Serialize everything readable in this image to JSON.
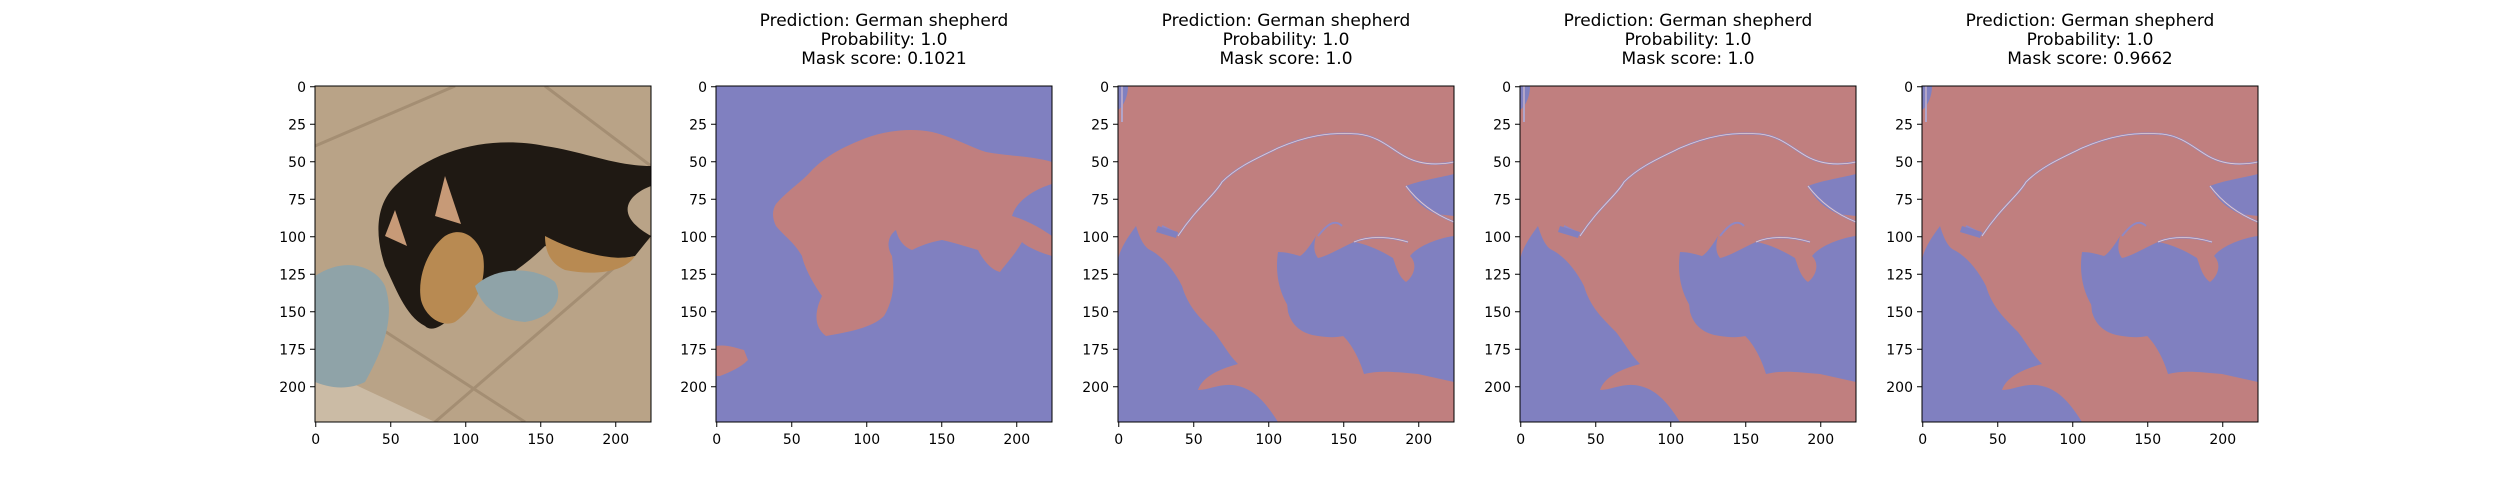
{
  "figure": {
    "background": "#ffffff",
    "panels": [
      {
        "kind": "photo",
        "title_lines": [],
        "image_description_icon": "photo-puppy-lying-on-tile-floor"
      },
      {
        "kind": "mask",
        "title_lines": [
          "Prediction: German shepherd",
          "Probability: 1.0",
          "Mask score: 0.1021"
        ]
      },
      {
        "kind": "mask",
        "title_lines": [
          "Prediction: German shepherd",
          "Probability: 1.0",
          "Mask score: 1.0"
        ]
      },
      {
        "kind": "mask",
        "title_lines": [
          "Prediction: German shepherd",
          "Probability: 1.0",
          "Mask score: 1.0"
        ]
      },
      {
        "kind": "mask",
        "title_lines": [
          "Prediction: German shepherd",
          "Probability: 1.0",
          "Mask score: 0.9662"
        ]
      }
    ],
    "colors": {
      "mask_background": "#8080c0",
      "mask_foreground": "#c07f7f",
      "mask_edge": "#e6d0d0",
      "photo_floor": "#b9a387",
      "photo_dog_dark": "#1f1913",
      "photo_dog_tan": "#b88a52",
      "photo_toy": "#8fa3a8"
    }
  },
  "chart_data": [
    {
      "type": "image",
      "title": "",
      "xlim": [
        0,
        224
      ],
      "ylim": [
        224,
        0
      ],
      "xticks": [
        0,
        50,
        100,
        150,
        200
      ],
      "yticks": [
        0,
        25,
        50,
        75,
        100,
        125,
        150,
        175,
        200
      ]
    },
    {
      "type": "heatmap",
      "title": "Prediction: German shepherd / Probability: 1.0 / Mask score: 0.1021",
      "prediction": "German shepherd",
      "probability": 1.0,
      "mask_score": 0.1021,
      "xlim": [
        0,
        224
      ],
      "ylim": [
        224,
        0
      ],
      "xticks": [
        0,
        50,
        100,
        150,
        200
      ],
      "yticks": [
        0,
        25,
        50,
        75,
        100,
        125,
        150,
        175,
        200
      ]
    },
    {
      "type": "heatmap",
      "title": "Prediction: German shepherd / Probability: 1.0 / Mask score: 1.0",
      "prediction": "German shepherd",
      "probability": 1.0,
      "mask_score": 1.0,
      "xlim": [
        0,
        224
      ],
      "ylim": [
        224,
        0
      ],
      "xticks": [
        0,
        50,
        100,
        150,
        200
      ],
      "yticks": [
        0,
        25,
        50,
        75,
        100,
        125,
        150,
        175,
        200
      ]
    },
    {
      "type": "heatmap",
      "title": "Prediction: German shepherd / Probability: 1.0 / Mask score: 1.0",
      "prediction": "German shepherd",
      "probability": 1.0,
      "mask_score": 1.0,
      "xlim": [
        0,
        224
      ],
      "ylim": [
        224,
        0
      ],
      "xticks": [
        0,
        50,
        100,
        150,
        200
      ],
      "yticks": [
        0,
        25,
        50,
        75,
        100,
        125,
        150,
        175,
        200
      ]
    },
    {
      "type": "heatmap",
      "title": "Prediction: German shepherd / Probability: 1.0 / Mask score: 0.9662",
      "prediction": "German shepherd",
      "probability": 1.0,
      "mask_score": 0.9662,
      "xlim": [
        0,
        224
      ],
      "ylim": [
        224,
        0
      ],
      "xticks": [
        0,
        50,
        100,
        150,
        200
      ],
      "yticks": [
        0,
        25,
        50,
        75,
        100,
        125,
        150,
        175,
        200
      ]
    }
  ]
}
